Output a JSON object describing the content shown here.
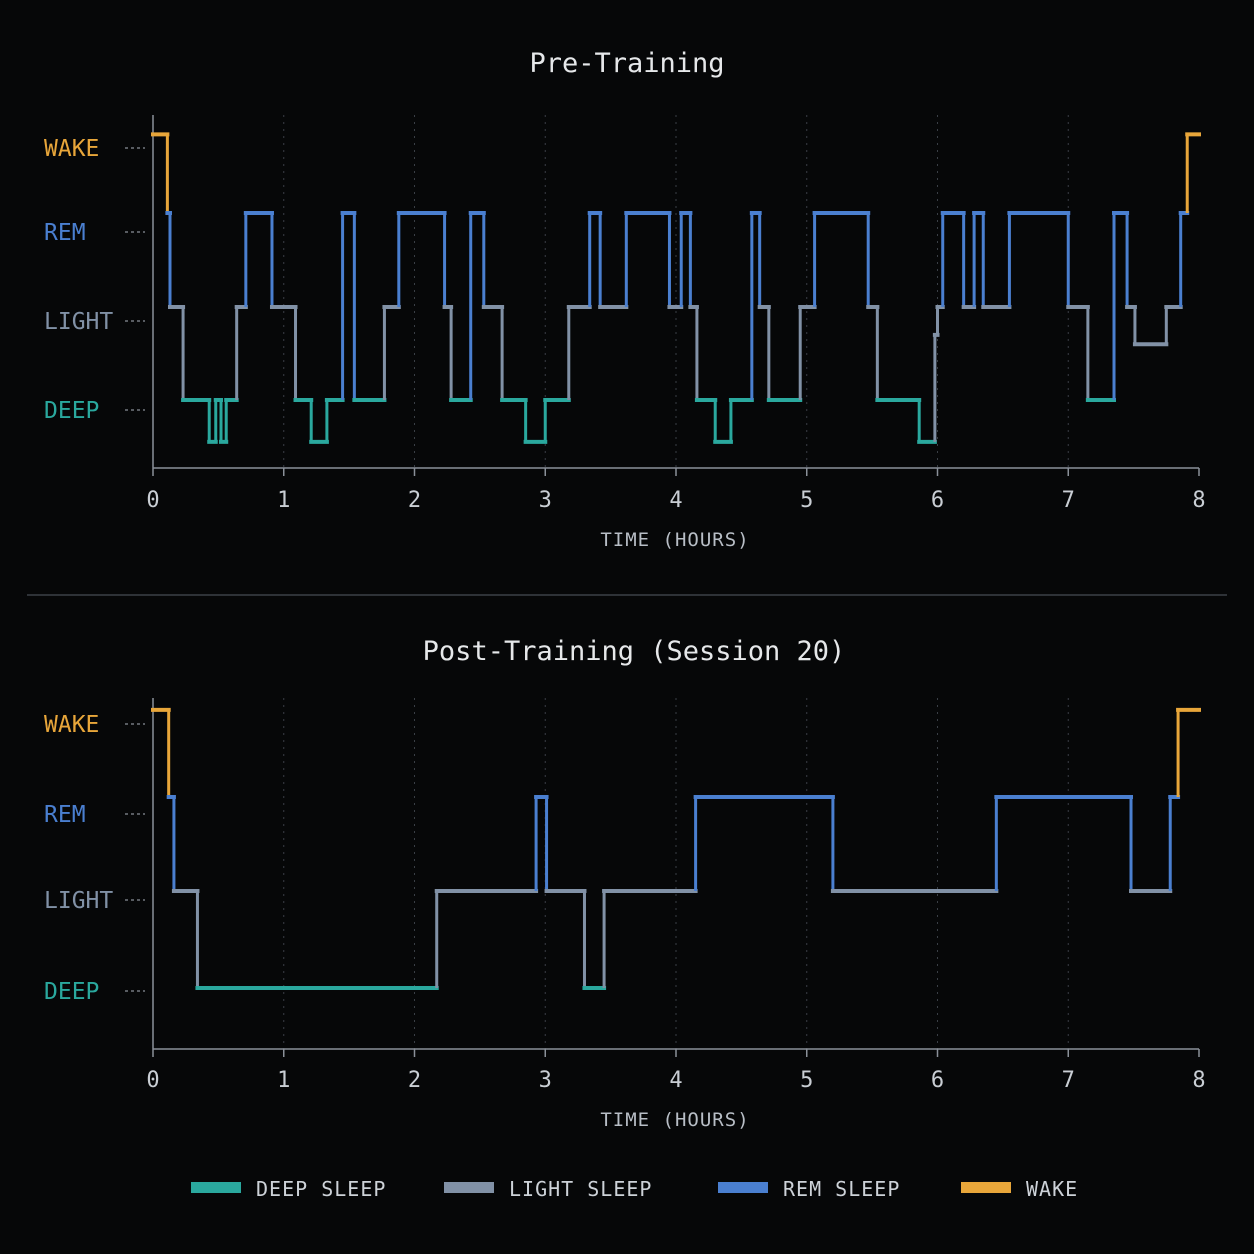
{
  "colors": {
    "background": "#060708",
    "deep": "#2aa89e",
    "light": "#8191a6",
    "rem": "#4a7fd0",
    "wake": "#e8a63a",
    "axis": "#8a9099",
    "grid": "#3a3f46",
    "divider": "#3b4047"
  },
  "legend": {
    "items": [
      {
        "key": "deep",
        "label": "DEEP SLEEP"
      },
      {
        "key": "light",
        "label": "LIGHT SLEEP"
      },
      {
        "key": "rem",
        "label": "REM SLEEP"
      },
      {
        "key": "wake",
        "label": "WAKE"
      }
    ],
    "placement": "bottom"
  },
  "chart_data": [
    {
      "type": "line",
      "step": true,
      "title": "Pre-Training",
      "xlabel": "TIME (HOURS)",
      "xlim": [
        0,
        8
      ],
      "xticks": [
        "0",
        "1",
        "2",
        "3",
        "4",
        "5",
        "6",
        "7",
        "8"
      ],
      "yticks": [
        {
          "label": "WAKE",
          "stage": "wake"
        },
        {
          "label": "REM",
          "stage": "rem"
        },
        {
          "label": "LIGHT",
          "stage": "light"
        },
        {
          "label": "DEEP",
          "stage": "deep"
        }
      ],
      "grid": "vertical-dotted",
      "segments": [
        [
          0.0,
          0.11,
          4.3
        ],
        [
          0.11,
          0.13,
          3.0
        ],
        [
          0.13,
          0.23,
          2.0
        ],
        [
          0.23,
          0.43,
          1.0
        ],
        [
          0.43,
          0.48,
          0.55
        ],
        [
          0.48,
          0.52,
          1.0
        ],
        [
          0.52,
          0.56,
          0.55
        ],
        [
          0.56,
          0.64,
          1.0
        ],
        [
          0.64,
          0.71,
          2.0
        ],
        [
          0.71,
          0.91,
          3.0
        ],
        [
          0.91,
          1.09,
          2.0
        ],
        [
          1.09,
          1.21,
          1.0
        ],
        [
          1.21,
          1.33,
          0.55
        ],
        [
          1.33,
          1.45,
          1.0
        ],
        [
          1.45,
          1.54,
          3.0
        ],
        [
          1.54,
          1.77,
          1.0
        ],
        [
          1.77,
          1.88,
          2.0
        ],
        [
          1.88,
          2.23,
          3.0
        ],
        [
          2.23,
          2.28,
          2.0
        ],
        [
          2.28,
          2.43,
          1.0
        ],
        [
          2.43,
          2.53,
          3.0
        ],
        [
          2.53,
          2.67,
          2.0
        ],
        [
          2.67,
          2.85,
          1.0
        ],
        [
          2.85,
          3.0,
          0.55
        ],
        [
          3.0,
          3.18,
          1.0
        ],
        [
          3.18,
          3.34,
          2.0
        ],
        [
          3.34,
          3.42,
          3.0
        ],
        [
          3.42,
          3.62,
          2.0
        ],
        [
          3.62,
          3.95,
          3.0
        ],
        [
          3.95,
          4.04,
          2.0
        ],
        [
          4.04,
          4.11,
          3.0
        ],
        [
          4.11,
          4.16,
          2.0
        ],
        [
          4.16,
          4.3,
          1.0
        ],
        [
          4.3,
          4.42,
          0.55
        ],
        [
          4.42,
          4.58,
          1.0
        ],
        [
          4.58,
          4.64,
          3.0
        ],
        [
          4.64,
          4.71,
          2.0
        ],
        [
          4.71,
          4.95,
          1.0
        ],
        [
          4.95,
          5.06,
          2.0
        ],
        [
          5.06,
          5.47,
          3.0
        ],
        [
          5.47,
          5.54,
          2.0
        ],
        [
          5.54,
          5.86,
          1.0
        ],
        [
          5.86,
          5.98,
          0.55
        ],
        [
          5.98,
          6.0,
          1.7
        ],
        [
          6.0,
          6.04,
          2.0
        ],
        [
          6.04,
          6.2,
          3.0
        ],
        [
          6.2,
          6.28,
          2.0
        ],
        [
          6.28,
          6.35,
          3.0
        ],
        [
          6.35,
          6.55,
          2.0
        ],
        [
          6.55,
          7.0,
          3.0
        ],
        [
          7.0,
          7.15,
          2.0
        ],
        [
          7.15,
          7.35,
          1.0
        ],
        [
          7.35,
          7.45,
          3.0
        ],
        [
          7.45,
          7.51,
          2.0
        ],
        [
          7.51,
          7.75,
          1.6
        ],
        [
          7.75,
          7.86,
          2.0
        ],
        [
          7.86,
          7.91,
          3.0
        ],
        [
          7.91,
          8.0,
          4.3
        ]
      ]
    },
    {
      "type": "line",
      "step": true,
      "title": "Post-Training (Session 20)",
      "xlabel": "TIME (HOURS)",
      "xlim": [
        0,
        8
      ],
      "xticks": [
        "0",
        "1",
        "2",
        "3",
        "4",
        "5",
        "6",
        "7",
        "8"
      ],
      "yticks": [
        {
          "label": "WAKE",
          "stage": "wake"
        },
        {
          "label": "REM",
          "stage": "rem"
        },
        {
          "label": "LIGHT",
          "stage": "light"
        },
        {
          "label": "DEEP",
          "stage": "deep"
        }
      ],
      "grid": "vertical-dotted",
      "segments": [
        [
          0.0,
          0.12,
          4.3
        ],
        [
          0.12,
          0.16,
          3.0
        ],
        [
          0.16,
          0.34,
          2.0
        ],
        [
          0.34,
          2.17,
          1.0
        ],
        [
          2.17,
          2.93,
          2.0
        ],
        [
          2.93,
          3.01,
          3.0
        ],
        [
          3.01,
          3.3,
          2.0
        ],
        [
          3.3,
          3.45,
          1.0
        ],
        [
          3.45,
          4.15,
          2.0
        ],
        [
          4.15,
          5.2,
          3.0
        ],
        [
          5.2,
          6.45,
          2.0
        ],
        [
          6.45,
          7.48,
          3.0
        ],
        [
          7.48,
          7.78,
          2.0
        ],
        [
          7.78,
          7.84,
          3.0
        ],
        [
          7.84,
          8.0,
          4.3
        ]
      ]
    }
  ]
}
